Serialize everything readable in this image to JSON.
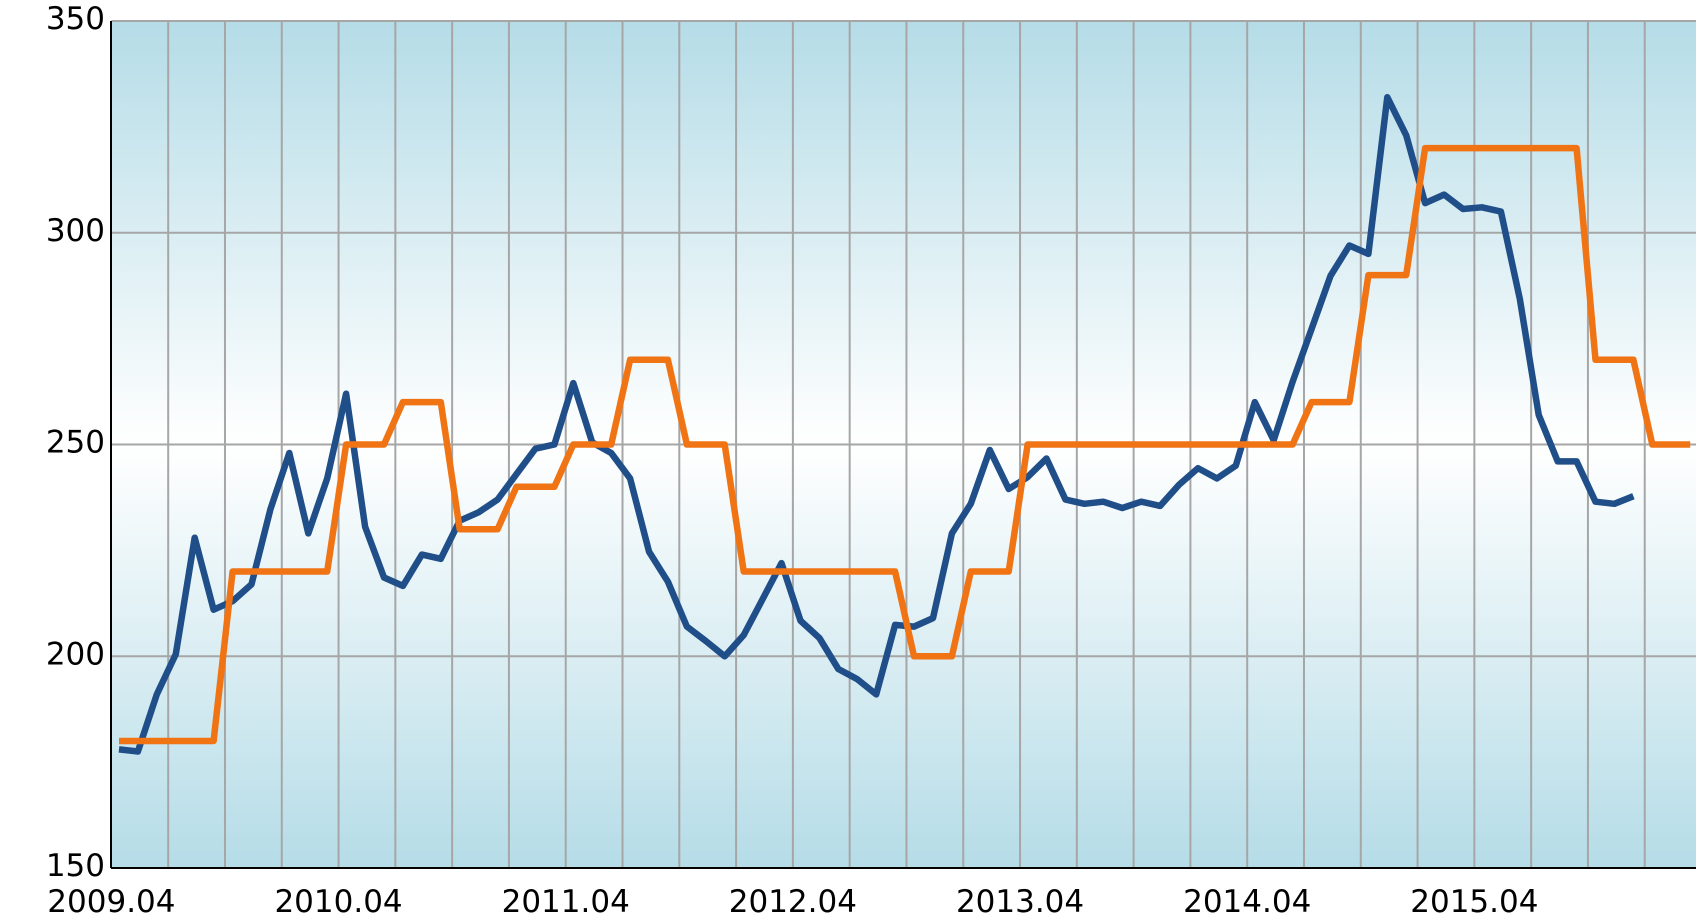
{
  "chart_data": {
    "type": "line",
    "categories": [
      "2009.04",
      null,
      null,
      null,
      null,
      null,
      null,
      null,
      null,
      null,
      null,
      null,
      "2010.04",
      null,
      null,
      null,
      null,
      null,
      null,
      null,
      null,
      null,
      null,
      null,
      "2011.04",
      null,
      null,
      null,
      null,
      null,
      null,
      null,
      null,
      null,
      null,
      null,
      "2012.04",
      null,
      null,
      null,
      null,
      null,
      null,
      null,
      null,
      null,
      null,
      null,
      "2013.04",
      null,
      null,
      null,
      null,
      null,
      null,
      null,
      null,
      null,
      null,
      null,
      "2014.04",
      null,
      null,
      null,
      null,
      null,
      null,
      null,
      null,
      null,
      null,
      null,
      "2015.04",
      null,
      null,
      null,
      null,
      null,
      null,
      null,
      null,
      null,
      null,
      null
    ],
    "series": [
      {
        "color": "#1f4e89",
        "values": [
          178,
          177.5,
          191,
          200.5,
          228,
          211,
          213,
          217,
          234.7,
          248,
          229,
          242,
          262,
          230.6,
          218.6,
          216.6,
          224,
          223,
          232,
          234,
          237,
          243,
          249,
          250,
          264.5,
          250.5,
          248,
          242,
          224.7,
          217.6,
          207,
          203.6,
          200,
          205,
          213.5,
          222,
          208.4,
          204.3,
          197,
          194.6,
          191,
          207.4,
          207,
          209,
          229,
          236,
          248.7,
          239.5,
          242.3,
          246.7,
          237,
          236,
          236.5,
          235,
          236.5,
          235.5,
          240.5,
          244.4,
          242,
          245,
          260,
          251,
          264.8,
          277.3,
          289.8,
          297,
          295,
          332,
          323,
          307,
          309,
          305.6,
          306,
          305,
          284.4,
          257,
          246,
          246,
          236.5,
          236,
          237.8,
          null,
          null,
          null
        ]
      },
      {
        "color": "#f07314",
        "values": [
          180,
          180,
          180,
          180,
          180,
          180,
          220,
          220,
          220,
          220,
          220,
          220,
          250,
          250,
          250,
          260,
          260,
          260,
          230,
          230,
          230,
          240,
          240,
          240,
          250,
          250,
          250,
          270,
          270,
          270,
          250,
          250,
          250,
          220,
          220,
          220,
          220,
          220,
          220,
          220,
          220,
          220,
          200,
          200,
          200,
          220,
          220,
          220,
          250,
          250,
          250,
          250,
          250,
          250,
          250,
          250,
          250,
          250,
          250,
          250,
          250,
          250,
          250,
          260,
          260,
          260,
          290,
          290,
          290,
          320,
          320,
          320,
          320,
          320,
          320,
          320,
          320,
          320,
          270,
          270,
          270,
          250,
          250,
          250
        ]
      }
    ],
    "ylim": [
      150,
      350
    ],
    "yticks": [
      150,
      200,
      250,
      300,
      350
    ],
    "grid": true
  }
}
